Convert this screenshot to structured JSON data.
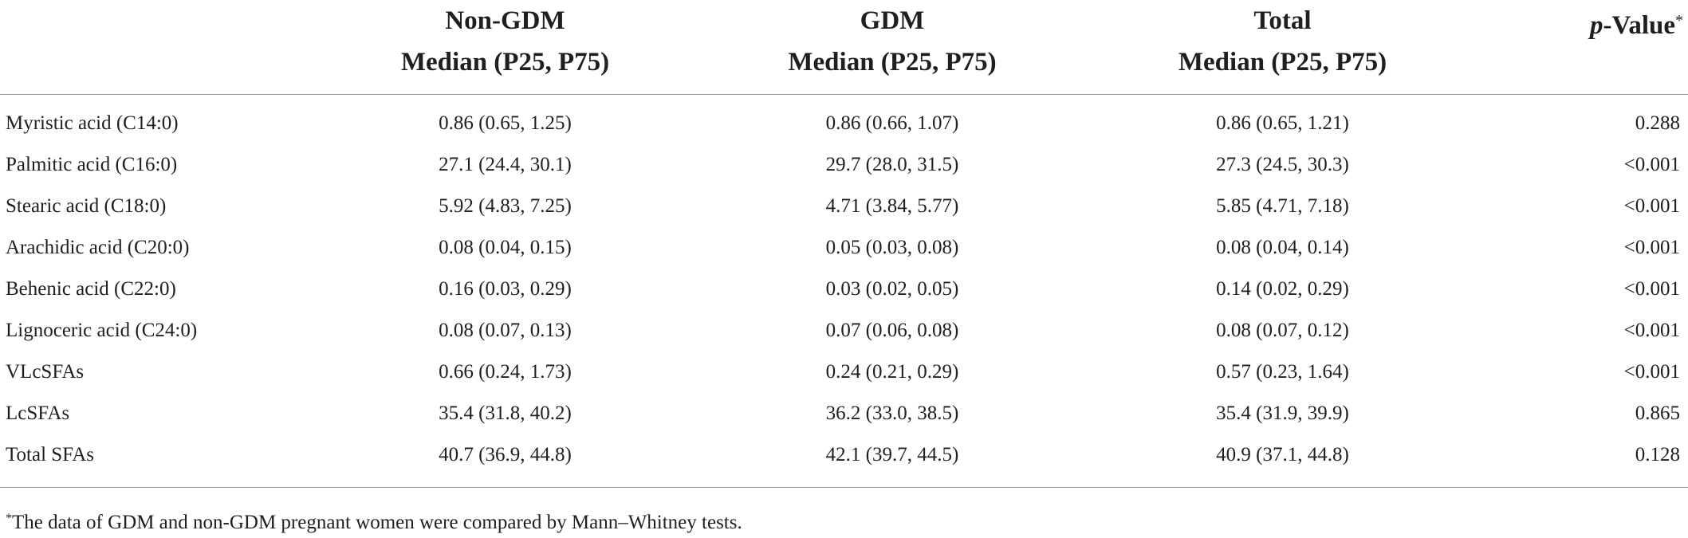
{
  "table": {
    "headers": {
      "col0": "",
      "col1": {
        "line1": "Non-GDM",
        "line2": "Median (P25, P75)"
      },
      "col2": {
        "line1": "GDM",
        "line2": "Median (P25, P75)"
      },
      "col3": {
        "line1": "Total",
        "line2": "Median (P25, P75)"
      },
      "col4": {
        "italic": "p",
        "rest": "-Value",
        "marker": "*"
      }
    },
    "rows": [
      {
        "label": "Myristic acid (C14:0)",
        "non_gdm": "0.86 (0.65, 1.25)",
        "gdm": "0.86 (0.66, 1.07)",
        "total": "0.86 (0.65, 1.21)",
        "p_value": "0.288"
      },
      {
        "label": "Palmitic acid (C16:0)",
        "non_gdm": "27.1 (24.4, 30.1)",
        "gdm": "29.7 (28.0, 31.5)",
        "total": "27.3 (24.5, 30.3)",
        "p_value": "<0.001"
      },
      {
        "label": "Stearic acid (C18:0)",
        "non_gdm": "5.92 (4.83, 7.25)",
        "gdm": "4.71 (3.84, 5.77)",
        "total": "5.85 (4.71, 7.18)",
        "p_value": "<0.001"
      },
      {
        "label": "Arachidic acid (C20:0)",
        "non_gdm": "0.08 (0.04, 0.15)",
        "gdm": "0.05 (0.03, 0.08)",
        "total": "0.08 (0.04, 0.14)",
        "p_value": "<0.001"
      },
      {
        "label": "Behenic acid (C22:0)",
        "non_gdm": "0.16 (0.03, 0.29)",
        "gdm": "0.03 (0.02, 0.05)",
        "total": "0.14 (0.02, 0.29)",
        "p_value": "<0.001"
      },
      {
        "label": "Lignoceric acid (C24:0)",
        "non_gdm": "0.08 (0.07, 0.13)",
        "gdm": "0.07 (0.06, 0.08)",
        "total": "0.08 (0.07, 0.12)",
        "p_value": "<0.001"
      },
      {
        "label": "VLcSFAs",
        "non_gdm": "0.66 (0.24, 1.73)",
        "gdm": "0.24 (0.21, 0.29)",
        "total": "0.57 (0.23, 1.64)",
        "p_value": "<0.001"
      },
      {
        "label": "LcSFAs",
        "non_gdm": "35.4 (31.8, 40.2)",
        "gdm": "36.2 (33.0, 38.5)",
        "total": "35.4 (31.9, 39.9)",
        "p_value": "0.865"
      },
      {
        "label": "Total SFAs",
        "non_gdm": "40.7 (36.9, 44.8)",
        "gdm": "42.1 (39.7, 44.5)",
        "total": "40.9 (37.1, 44.8)",
        "p_value": "0.128"
      }
    ]
  },
  "footnote": {
    "marker": "*",
    "text": "The data of GDM and non-GDM pregnant women were compared by Mann–Whitney tests."
  }
}
